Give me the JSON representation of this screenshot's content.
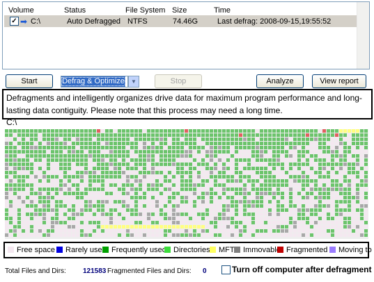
{
  "volume_list": {
    "columns": [
      "Volume",
      "Status",
      "File System",
      "Size",
      "Time"
    ],
    "rows": [
      {
        "checked": true,
        "volume": "C:\\",
        "status": "Auto Defragged",
        "file_system": "NTFS",
        "size": "74.46G",
        "time": "Last defrag: 2008-09-15,19:55:52"
      }
    ]
  },
  "toolbar": {
    "start_label": "Start",
    "mode_value": "Defrag & Optimize",
    "stop_label": "Stop",
    "analyze_label": "Analyze",
    "report_label": "View report"
  },
  "description": "Defragments and intelligently organizes drive data for maximum program performance and long-lasting data contiguity. Please note that this process may need a long time.",
  "drive_label": "C:\\",
  "legend": [
    {
      "label": "Free space",
      "color": "#f4e8f0"
    },
    {
      "label": "Rarely used",
      "color": "#0000e0"
    },
    {
      "label": "Frequently used",
      "color": "#00a000"
    },
    {
      "label": "Directories",
      "color": "#3cdc3c"
    },
    {
      "label": "MFT",
      "color": "#ffff60"
    },
    {
      "label": "Immovable",
      "color": "#808080"
    },
    {
      "label": "Fragmented",
      "color": "#c00000"
    },
    {
      "label": "Moving to",
      "color": "#9a7cff"
    }
  ],
  "map_colors": {
    "free": "#f4e8f0",
    "frequent": "#6cc46c",
    "immovable": "#a8a8a8",
    "fragmented": "#e06060",
    "mft": "#ffff80",
    "directory": "#3cdc3c"
  },
  "status": {
    "total_label": "Total Files and Dirs:",
    "total_value": "121583",
    "frag_label": "Fragmented Files and Dirs:",
    "frag_value": "0",
    "shutdown_label": "Turn off computer after defragment",
    "shutdown_checked": false
  }
}
